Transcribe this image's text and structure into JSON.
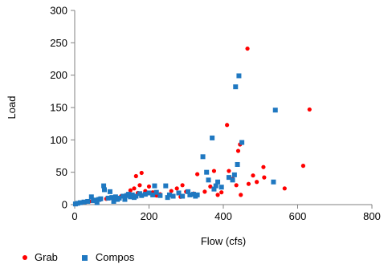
{
  "chart_data": {
    "type": "scatter",
    "title": "",
    "xlabel": "Flow (cfs)",
    "ylabel": "Load",
    "xlim": [
      0,
      800
    ],
    "ylim": [
      0,
      300
    ],
    "x_ticks": [
      0,
      200,
      400,
      600,
      800
    ],
    "y_ticks": [
      0,
      50,
      100,
      150,
      200,
      250,
      300
    ],
    "grid": false,
    "legend_placement": "bottom",
    "series": [
      {
        "name": "Grab",
        "marker": "circle",
        "color": "#ff0000",
        "points": [
          [
            5,
            1
          ],
          [
            10,
            2
          ],
          [
            20,
            3
          ],
          [
            30,
            4
          ],
          [
            40,
            5
          ],
          [
            50,
            6
          ],
          [
            60,
            7
          ],
          [
            70,
            8
          ],
          [
            85,
            9
          ],
          [
            100,
            10
          ],
          [
            110,
            12
          ],
          [
            125,
            13
          ],
          [
            140,
            15
          ],
          [
            150,
            22
          ],
          [
            160,
            25
          ],
          [
            165,
            44
          ],
          [
            170,
            18
          ],
          [
            175,
            30
          ],
          [
            180,
            49
          ],
          [
            190,
            21
          ],
          [
            200,
            28
          ],
          [
            210,
            19
          ],
          [
            220,
            14
          ],
          [
            230,
            16
          ],
          [
            260,
            21
          ],
          [
            275,
            25
          ],
          [
            285,
            12
          ],
          [
            290,
            30
          ],
          [
            300,
            20
          ],
          [
            320,
            17
          ],
          [
            330,
            47
          ],
          [
            350,
            20
          ],
          [
            365,
            28
          ],
          [
            375,
            52
          ],
          [
            385,
            15
          ],
          [
            395,
            19
          ],
          [
            410,
            123
          ],
          [
            415,
            52
          ],
          [
            425,
            40
          ],
          [
            435,
            30
          ],
          [
            440,
            83
          ],
          [
            445,
            93
          ],
          [
            447,
            15
          ],
          [
            465,
            241
          ],
          [
            468,
            32
          ],
          [
            480,
            45
          ],
          [
            490,
            35
          ],
          [
            508,
            58
          ],
          [
            510,
            42
          ],
          [
            565,
            25
          ],
          [
            615,
            60
          ],
          [
            632,
            147
          ]
        ]
      },
      {
        "name": "Compos",
        "marker": "square",
        "color": "#1f78c1",
        "points": [
          [
            2,
            1
          ],
          [
            8,
            2
          ],
          [
            15,
            3
          ],
          [
            25,
            4
          ],
          [
            35,
            5
          ],
          [
            45,
            12
          ],
          [
            50,
            6
          ],
          [
            55,
            7
          ],
          [
            60,
            3
          ],
          [
            65,
            8
          ],
          [
            70,
            9
          ],
          [
            78,
            29
          ],
          [
            80,
            23
          ],
          [
            90,
            10
          ],
          [
            95,
            20
          ],
          [
            100,
            11
          ],
          [
            105,
            5
          ],
          [
            110,
            12
          ],
          [
            115,
            8
          ],
          [
            120,
            10
          ],
          [
            130,
            13
          ],
          [
            135,
            8
          ],
          [
            140,
            14
          ],
          [
            145,
            16
          ],
          [
            150,
            12
          ],
          [
            155,
            15
          ],
          [
            160,
            11
          ],
          [
            165,
            13
          ],
          [
            175,
            17
          ],
          [
            180,
            14
          ],
          [
            190,
            16
          ],
          [
            200,
            18
          ],
          [
            210,
            15
          ],
          [
            215,
            29
          ],
          [
            220,
            19
          ],
          [
            230,
            14
          ],
          [
            245,
            29
          ],
          [
            250,
            11
          ],
          [
            255,
            15
          ],
          [
            265,
            13
          ],
          [
            280,
            18
          ],
          [
            290,
            13
          ],
          [
            305,
            20
          ],
          [
            310,
            15
          ],
          [
            320,
            16
          ],
          [
            325,
            13
          ],
          [
            330,
            15
          ],
          [
            345,
            74
          ],
          [
            355,
            50
          ],
          [
            360,
            38
          ],
          [
            370,
            103
          ],
          [
            375,
            24
          ],
          [
            380,
            29
          ],
          [
            385,
            35
          ],
          [
            395,
            27
          ],
          [
            415,
            42
          ],
          [
            425,
            38
          ],
          [
            430,
            46
          ],
          [
            433,
            182
          ],
          [
            438,
            62
          ],
          [
            442,
            199
          ],
          [
            450,
            96
          ],
          [
            535,
            35
          ],
          [
            540,
            146
          ]
        ]
      }
    ]
  }
}
